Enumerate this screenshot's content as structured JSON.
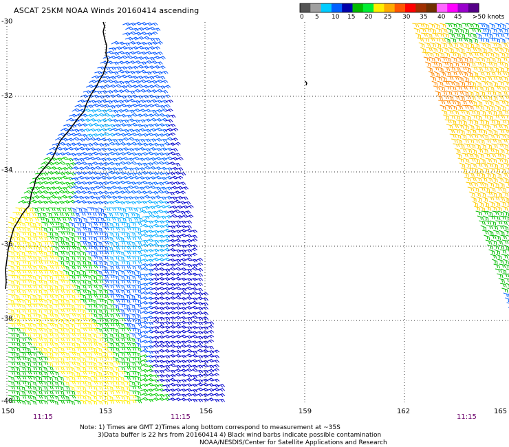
{
  "title": "ASCAT 25KM NOAA Winds 20160414 ascending",
  "units_label": ">50 knots",
  "color_scale": {
    "colors": [
      "#555555",
      "#a0a0a0",
      "#00ccff",
      "#0060ff",
      "#0000aa",
      "#00bb00",
      "#00ee33",
      "#ffee00",
      "#ffaa00",
      "#ff5500",
      "#ff0000",
      "#a03000",
      "#703000",
      "#ff66ff",
      "#ff00ff",
      "#9900cc",
      "#550088"
    ],
    "tick_labels": [
      "0",
      "5",
      "10",
      "15",
      "20",
      "25",
      "30",
      "35",
      "40",
      "45"
    ]
  },
  "latitudes": [
    "-30",
    "-32",
    "-34",
    "-36",
    "-38",
    "-40"
  ],
  "longitudes": [
    "150",
    "153",
    "156",
    "159",
    "162",
    "165"
  ],
  "times": [
    "11:15",
    "11:15",
    "11:15"
  ],
  "notes": {
    "line1": "Note: 1) Times are GMT 2)Times along bottom correspond to measurement at ~35S",
    "line2": "3)Data buffer is 22 hrs from 20160414 4) Black wind barbs indicate possible contamination",
    "line3": "NOAA/NESDIS/Center for Satellite Applications and Research"
  }
}
